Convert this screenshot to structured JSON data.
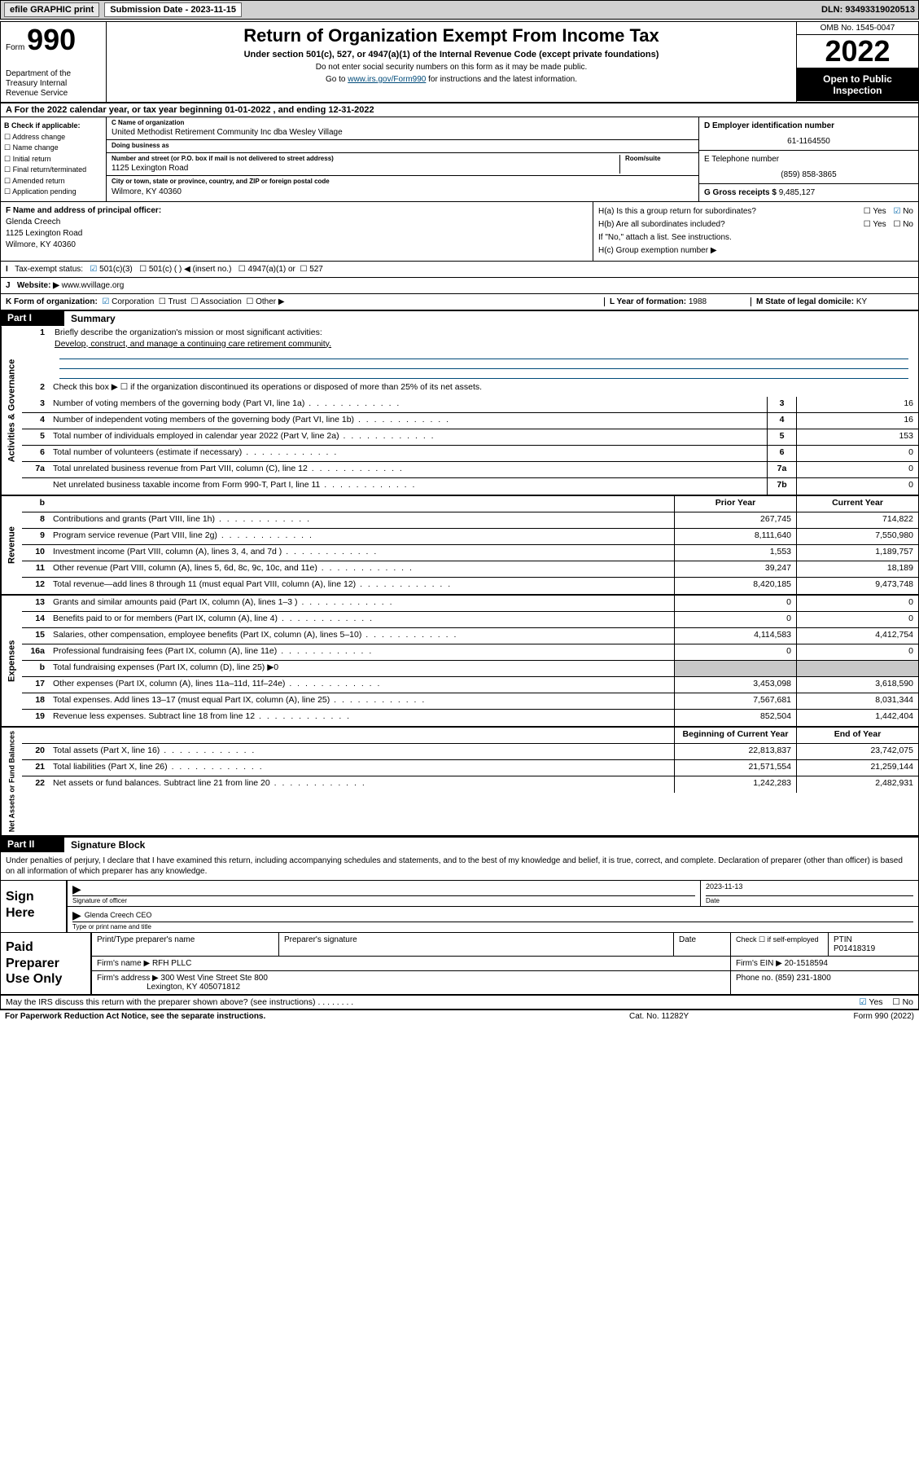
{
  "topbar": {
    "efile": "efile GRAPHIC print",
    "subdate_label": "Submission Date - 2023-11-15",
    "dln": "DLN: 93493319020513"
  },
  "header": {
    "form_word": "Form",
    "form_num": "990",
    "dept": "Department of the Treasury\nInternal Revenue Service",
    "title": "Return of Organization Exempt From Income Tax",
    "sub": "Under section 501(c), 527, or 4947(a)(1) of the Internal Revenue Code (except private foundations)",
    "note1": "Do not enter social security numbers on this form as it may be made public.",
    "note2_pre": "Go to ",
    "note2_link": "www.irs.gov/Form990",
    "note2_post": " for instructions and the latest information.",
    "omb": "OMB No. 1545-0047",
    "year": "2022",
    "otp": "Open to Public Inspection"
  },
  "lineA": "A For the 2022 calendar year, or tax year beginning 01-01-2022   , and ending 12-31-2022",
  "colB": {
    "label": "B Check if applicable:",
    "items": [
      "Address change",
      "Name change",
      "Initial return",
      "Final return/terminated",
      "Amended return",
      "Application pending"
    ]
  },
  "colC": {
    "name_lbl": "C Name of organization",
    "name": "United Methodist Retirement Community Inc dba Wesley Village",
    "dba_lbl": "Doing business as",
    "dba": "",
    "addr_lbl": "Number and street (or P.O. box if mail is not delivered to street address)",
    "room_lbl": "Room/suite",
    "addr": "1125 Lexington Road",
    "city_lbl": "City or town, state or province, country, and ZIP or foreign postal code",
    "city": "Wilmore, KY  40360"
  },
  "colD": {
    "ein_lbl": "D Employer identification number",
    "ein": "61-1164550",
    "phone_lbl": "E Telephone number",
    "phone": "(859) 858-3865",
    "gross_lbl": "G Gross receipts $",
    "gross": "9,485,127"
  },
  "rowF": {
    "label": "F Name and address of principal officer:",
    "name": "Glenda Creech",
    "addr1": "1125 Lexington Road",
    "addr2": "Wilmore, KY  40360"
  },
  "rowH": {
    "ha": "H(a)  Is this a group return for subordinates?",
    "hb": "H(b)  Are all subordinates included?",
    "hb_note": "If \"No,\" attach a list. See instructions.",
    "hc": "H(c)  Group exemption number ▶",
    "yes": "Yes",
    "no": "No"
  },
  "rowI": {
    "label": "Tax-exempt status:",
    "opt1": "501(c)(3)",
    "opt2": "501(c) (  ) ◀ (insert no.)",
    "opt3": "4947(a)(1) or",
    "opt4": "527"
  },
  "rowJ": {
    "label": "Website: ▶",
    "val": "www.wvillage.org"
  },
  "rowK": {
    "label": "K Form of organization:",
    "opts": [
      "Corporation",
      "Trust",
      "Association",
      "Other ▶"
    ],
    "year_lbl": "L Year of formation:",
    "year": "1988",
    "state_lbl": "M State of legal domicile:",
    "state": "KY"
  },
  "partI": {
    "num": "Part I",
    "title": "Summary"
  },
  "gov": {
    "label": "Activities & Governance",
    "l1_lbl": "1",
    "l1": "Briefly describe the organization's mission or most significant activities:",
    "l1_text": "Develop, construct, and manage a continuing care retirement community.",
    "l2_lbl": "2",
    "l2": "Check this box ▶ ☐  if the organization discontinued its operations or disposed of more than 25% of its net assets.",
    "lines": [
      {
        "n": "3",
        "d": "Number of voting members of the governing body (Part VI, line 1a)",
        "b": "3",
        "v": "16"
      },
      {
        "n": "4",
        "d": "Number of independent voting members of the governing body (Part VI, line 1b)",
        "b": "4",
        "v": "16"
      },
      {
        "n": "5",
        "d": "Total number of individuals employed in calendar year 2022 (Part V, line 2a)",
        "b": "5",
        "v": "153"
      },
      {
        "n": "6",
        "d": "Total number of volunteers (estimate if necessary)",
        "b": "6",
        "v": "0"
      },
      {
        "n": "7a",
        "d": "Total unrelated business revenue from Part VIII, column (C), line 12",
        "b": "7a",
        "v": "0"
      },
      {
        "n": "",
        "d": "Net unrelated business taxable income from Form 990-T, Part I, line 11",
        "b": "7b",
        "v": "0"
      }
    ]
  },
  "colhdr": {
    "prior": "Prior Year",
    "current": "Current Year",
    "boy": "Beginning of Current Year",
    "eoy": "End of Year"
  },
  "rev": {
    "label": "Revenue",
    "lines": [
      {
        "n": "8",
        "d": "Contributions and grants (Part VIII, line 1h)",
        "p": "267,745",
        "c": "714,822"
      },
      {
        "n": "9",
        "d": "Program service revenue (Part VIII, line 2g)",
        "p": "8,111,640",
        "c": "7,550,980"
      },
      {
        "n": "10",
        "d": "Investment income (Part VIII, column (A), lines 3, 4, and 7d )",
        "p": "1,553",
        "c": "1,189,757"
      },
      {
        "n": "11",
        "d": "Other revenue (Part VIII, column (A), lines 5, 6d, 8c, 9c, 10c, and 11e)",
        "p": "39,247",
        "c": "18,189"
      },
      {
        "n": "12",
        "d": "Total revenue—add lines 8 through 11 (must equal Part VIII, column (A), line 12)",
        "p": "8,420,185",
        "c": "9,473,748"
      }
    ]
  },
  "exp": {
    "label": "Expenses",
    "lines": [
      {
        "n": "13",
        "d": "Grants and similar amounts paid (Part IX, column (A), lines 1–3 )",
        "p": "0",
        "c": "0"
      },
      {
        "n": "14",
        "d": "Benefits paid to or for members (Part IX, column (A), line 4)",
        "p": "0",
        "c": "0"
      },
      {
        "n": "15",
        "d": "Salaries, other compensation, employee benefits (Part IX, column (A), lines 5–10)",
        "p": "4,114,583",
        "c": "4,412,754"
      },
      {
        "n": "16a",
        "d": "Professional fundraising fees (Part IX, column (A), line 11e)",
        "p": "0",
        "c": "0"
      },
      {
        "n": "b",
        "d": "Total fundraising expenses (Part IX, column (D), line 25) ▶0",
        "p": "",
        "c": "",
        "grey": true
      },
      {
        "n": "17",
        "d": "Other expenses (Part IX, column (A), lines 11a–11d, 11f–24e)",
        "p": "3,453,098",
        "c": "3,618,590"
      },
      {
        "n": "18",
        "d": "Total expenses. Add lines 13–17 (must equal Part IX, column (A), line 25)",
        "p": "7,567,681",
        "c": "8,031,344"
      },
      {
        "n": "19",
        "d": "Revenue less expenses. Subtract line 18 from line 12",
        "p": "852,504",
        "c": "1,442,404"
      }
    ]
  },
  "net": {
    "label": "Net Assets or Fund Balances",
    "lines": [
      {
        "n": "20",
        "d": "Total assets (Part X, line 16)",
        "p": "22,813,837",
        "c": "23,742,075"
      },
      {
        "n": "21",
        "d": "Total liabilities (Part X, line 26)",
        "p": "21,571,554",
        "c": "21,259,144"
      },
      {
        "n": "22",
        "d": "Net assets or fund balances. Subtract line 21 from line 20",
        "p": "1,242,283",
        "c": "2,482,931"
      }
    ]
  },
  "partII": {
    "num": "Part II",
    "title": "Signature Block"
  },
  "sig": {
    "decl": "Under penalties of perjury, I declare that I have examined this return, including accompanying schedules and statements, and to the best of my knowledge and belief, it is true, correct, and complete. Declaration of preparer (other than officer) is based on all information of which preparer has any knowledge.",
    "sign_here": "Sign Here",
    "sig_of_officer": "Signature of officer",
    "date_lbl": "Date",
    "date": "2023-11-13",
    "name_title": "Glenda Creech CEO",
    "name_title_lbl": "Type or print name and title"
  },
  "paid": {
    "label": "Paid Preparer Use Only",
    "h1": "Print/Type preparer's name",
    "h2": "Preparer's signature",
    "h3": "Date",
    "h4_a": "Check ☐ if self-employed",
    "h4_b": "PTIN",
    "ptin": "P01418319",
    "firm_name_lbl": "Firm's name    ▶",
    "firm_name": "RFH PLLC",
    "firm_ein_lbl": "Firm's EIN ▶",
    "firm_ein": "20-1518594",
    "firm_addr_lbl": "Firm's address ▶",
    "firm_addr1": "300 West Vine Street Ste 800",
    "firm_addr2": "Lexington, KY  405071812",
    "phone_lbl": "Phone no.",
    "phone": "(859) 231-1800"
  },
  "may": {
    "q": "May the IRS discuss this return with the preparer shown above? (see instructions)",
    "yes": "Yes",
    "no": "No"
  },
  "footer": {
    "l": "For Paperwork Reduction Act Notice, see the separate instructions.",
    "m": "Cat. No. 11282Y",
    "r": "Form 990 (2022)"
  }
}
